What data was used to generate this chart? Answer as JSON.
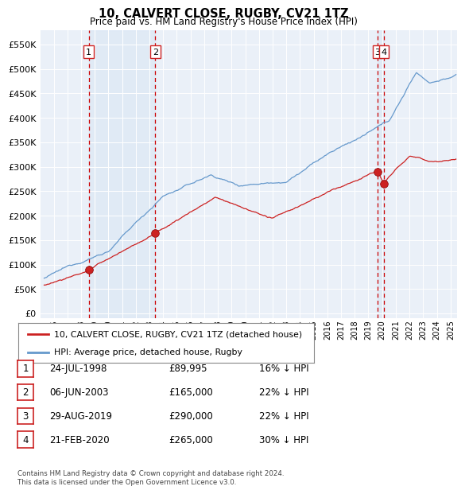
{
  "title": "10, CALVERT CLOSE, RUGBY, CV21 1TZ",
  "subtitle": "Price paid vs. HM Land Registry's House Price Index (HPI)",
  "plot_bg_color": "#eaf0f8",
  "yticks": [
    0,
    50000,
    100000,
    150000,
    200000,
    250000,
    300000,
    350000,
    400000,
    450000,
    500000,
    550000
  ],
  "ytick_labels": [
    "£0",
    "£50K",
    "£100K",
    "£150K",
    "£200K",
    "£250K",
    "£300K",
    "£350K",
    "£400K",
    "£450K",
    "£500K",
    "£550K"
  ],
  "xlim_start": 1995.3,
  "xlim_end": 2025.5,
  "ylim": [
    -10000,
    580000
  ],
  "hpi_color": "#6699cc",
  "price_color": "#cc2222",
  "vline_color": "#cc0000",
  "shade_color": "#dce8f5",
  "transactions": [
    {
      "num": 1,
      "date_label": "24-JUL-1998",
      "year": 1998.56,
      "price": 89995,
      "pct": "16%"
    },
    {
      "num": 2,
      "date_label": "06-JUN-2003",
      "year": 2003.43,
      "price": 165000,
      "pct": "22%"
    },
    {
      "num": 3,
      "date_label": "29-AUG-2019",
      "year": 2019.66,
      "price": 290000,
      "pct": "22%"
    },
    {
      "num": 4,
      "date_label": "21-FEB-2020",
      "year": 2020.13,
      "price": 265000,
      "pct": "30%"
    }
  ],
  "legend_entries": [
    "10, CALVERT CLOSE, RUGBY, CV21 1TZ (detached house)",
    "HPI: Average price, detached house, Rugby"
  ],
  "footer": "Contains HM Land Registry data © Crown copyright and database right 2024.\nThis data is licensed under the Open Government Licence v3.0.",
  "xtick_years": [
    1995,
    1996,
    1997,
    1998,
    1999,
    2000,
    2001,
    2002,
    2003,
    2004,
    2005,
    2006,
    2007,
    2008,
    2009,
    2010,
    2011,
    2012,
    2013,
    2014,
    2015,
    2016,
    2017,
    2018,
    2019,
    2020,
    2021,
    2022,
    2023,
    2024,
    2025
  ]
}
